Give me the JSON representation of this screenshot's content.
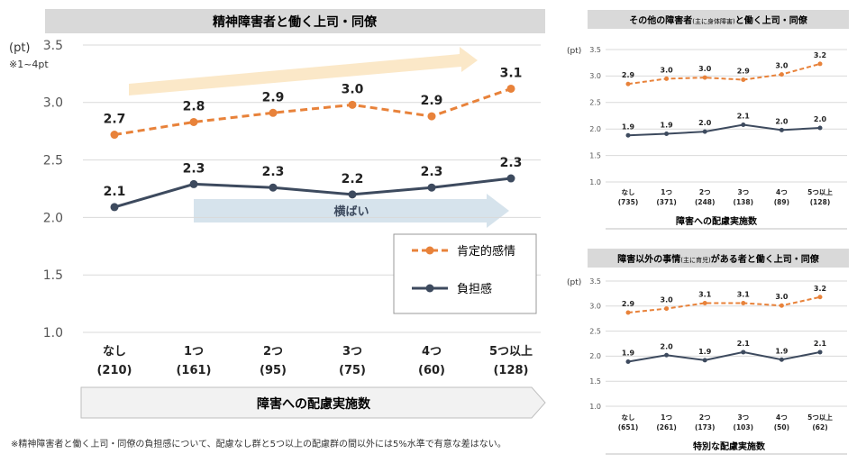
{
  "colors": {
    "positive": "#E8823A",
    "burden": "#3D4A5E",
    "header_bg": "#D9D9D9",
    "grid": "#D9D9D9",
    "trend_up": "#FBE8C8",
    "trend_flat": "#D6E3EC",
    "axis_text": "#555555"
  },
  "main": {
    "title": "精神障害者と働く上司・同僚",
    "unit": "(pt)",
    "note_scale": "※1~4pt",
    "flat_label": "横ばい",
    "xaxis_banner": "障害への配慮実施数",
    "footnote": "※精神障害者と働く上司・同僚の負担感について、配慮なし群と5つ以上の配慮群の間以外には5%水準で有意な差はない。",
    "legend": {
      "positive": "肯定的感情",
      "burden": "負担感"
    }
  },
  "chart_data": [
    {
      "type": "line",
      "title": "精神障害者と働く上司・同僚",
      "ylabel": "(pt)",
      "xlabel": "障害への配慮実施数",
      "ylim": [
        1.0,
        3.5
      ],
      "yticks": [
        "1.0",
        "1.5",
        "2.0",
        "2.5",
        "3.0",
        "3.5"
      ],
      "categories": [
        "なし",
        "1つ",
        "2つ",
        "3つ",
        "4つ",
        "5つ以上"
      ],
      "counts": [
        "(210)",
        "(161)",
        "(95)",
        "(75)",
        "(60)",
        "(128)"
      ],
      "series": [
        {
          "name": "肯定的感情",
          "values": [
            2.72,
            2.83,
            2.91,
            2.98,
            2.88,
            3.12
          ],
          "labels": [
            "2.7",
            "2.8",
            "2.9",
            "3.0",
            "2.9",
            "3.1"
          ]
        },
        {
          "name": "負担感",
          "values": [
            2.09,
            2.29,
            2.26,
            2.2,
            2.26,
            2.34
          ],
          "labels": [
            "2.1",
            "2.3",
            "2.3",
            "2.2",
            "2.3",
            "2.3"
          ]
        }
      ]
    },
    {
      "type": "line",
      "title_prefix": "その他の障害者",
      "title_small": "(主に身体障害)",
      "title_suffix": "と働く上司・同僚",
      "ylabel": "(pt)",
      "xlabel": "障害への配慮実施数",
      "ylim": [
        1.0,
        3.5
      ],
      "yticks": [
        "1.0",
        "1.5",
        "2.0",
        "2.5",
        "3.0",
        "3.5"
      ],
      "categories": [
        "なし",
        "1つ",
        "2つ",
        "3つ",
        "4つ",
        "5つ以上"
      ],
      "counts": [
        "(735)",
        "(371)",
        "(248)",
        "(138)",
        "(89)",
        "(128)"
      ],
      "series": [
        {
          "name": "肯定的感情",
          "values": [
            2.85,
            2.95,
            2.97,
            2.93,
            3.03,
            3.23
          ],
          "labels": [
            "2.9",
            "3.0",
            "3.0",
            "2.9",
            "3.0",
            "3.2"
          ]
        },
        {
          "name": "負担感",
          "values": [
            1.88,
            1.91,
            1.95,
            2.08,
            1.98,
            2.02
          ],
          "labels": [
            "1.9",
            "1.9",
            "2.0",
            "2.1",
            "2.0",
            "2.0"
          ]
        }
      ]
    },
    {
      "type": "line",
      "title_prefix": "障害以外の事情",
      "title_small": "(主に育児)",
      "title_suffix": "がある者と働く上司・同僚",
      "ylabel": "(pt)",
      "xlabel": "特別な配慮実施数",
      "ylim": [
        1.0,
        3.5
      ],
      "yticks": [
        "1.0",
        "1.5",
        "2.0",
        "2.5",
        "3.0",
        "3.5"
      ],
      "categories": [
        "なし",
        "1つ",
        "2つ",
        "3つ",
        "4つ",
        "5つ以上"
      ],
      "counts": [
        "(651)",
        "(261)",
        "(173)",
        "(103)",
        "(50)",
        "(62)"
      ],
      "series": [
        {
          "name": "肯定的感情",
          "values": [
            2.87,
            2.95,
            3.06,
            3.06,
            3.01,
            3.18
          ],
          "labels": [
            "2.9",
            "3.0",
            "3.1",
            "3.1",
            "3.0",
            "3.2"
          ]
        },
        {
          "name": "負担感",
          "values": [
            1.89,
            2.02,
            1.92,
            2.08,
            1.93,
            2.08
          ],
          "labels": [
            "1.9",
            "2.0",
            "1.9",
            "2.1",
            "1.9",
            "2.1"
          ]
        }
      ]
    }
  ]
}
